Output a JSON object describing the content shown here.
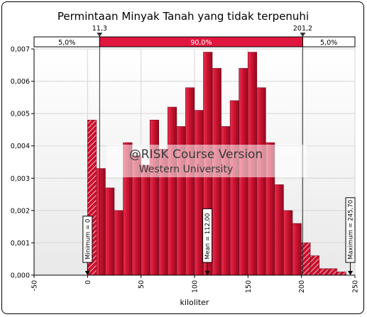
{
  "chart_data": {
    "type": "bar",
    "title": "Permintaan Minyak Tanah yang tidak terpenuhi",
    "xlabel": "kiloliter",
    "ylabel": "",
    "xlim": [
      -50,
      250
    ],
    "ylim": [
      0,
      0.007
    ],
    "x_ticks": [
      "-50",
      "0",
      "50",
      "100",
      "150",
      "200",
      "250"
    ],
    "x_tick_values": [
      -50,
      0,
      50,
      100,
      150,
      200,
      250
    ],
    "y_ticks": [
      "0,000",
      "0,001",
      "0,002",
      "0,003",
      "0,004",
      "0,005",
      "0,006",
      "0,007"
    ],
    "y_tick_values": [
      0,
      0.001,
      0.002,
      0.003,
      0.004,
      0.005,
      0.006,
      0.007
    ],
    "grid": true,
    "bin_width": 8.33,
    "bin_start": 0,
    "values": [
      0.0048,
      0.0033,
      0.0027,
      0.002,
      0.0041,
      0.0037,
      0.0034,
      0.0048,
      0.0039,
      0.0052,
      0.0046,
      0.0058,
      0.0051,
      0.0069,
      0.0064,
      0.0046,
      0.0054,
      0.0064,
      0.0069,
      0.0058,
      0.0041,
      0.0028,
      0.002,
      0.0016,
      0.001,
      0.0006,
      0.0002,
      0.0002,
      0.0001
    ],
    "percentile_band": {
      "left_value": "11,3",
      "right_value": "201,2",
      "left_x": 11.3,
      "right_x": 201.2,
      "left_pct": "5,0%",
      "middle_pct": "90,0%",
      "right_pct": "5,0%"
    },
    "markers": [
      {
        "label": "Minimum = 0",
        "x": 0
      },
      {
        "label": "Mean = 112,00",
        "x": 112
      },
      {
        "label": "Maximum = 245,70",
        "x": 245.7
      }
    ],
    "watermark": {
      "line1": "@RISK Course Version",
      "line2": "Western University"
    },
    "colors": {
      "bar": "#c8102e",
      "bar_dark": "#8e0b20",
      "band_middle": "#e0163f",
      "plot_bg": "#f2f2f2"
    }
  }
}
